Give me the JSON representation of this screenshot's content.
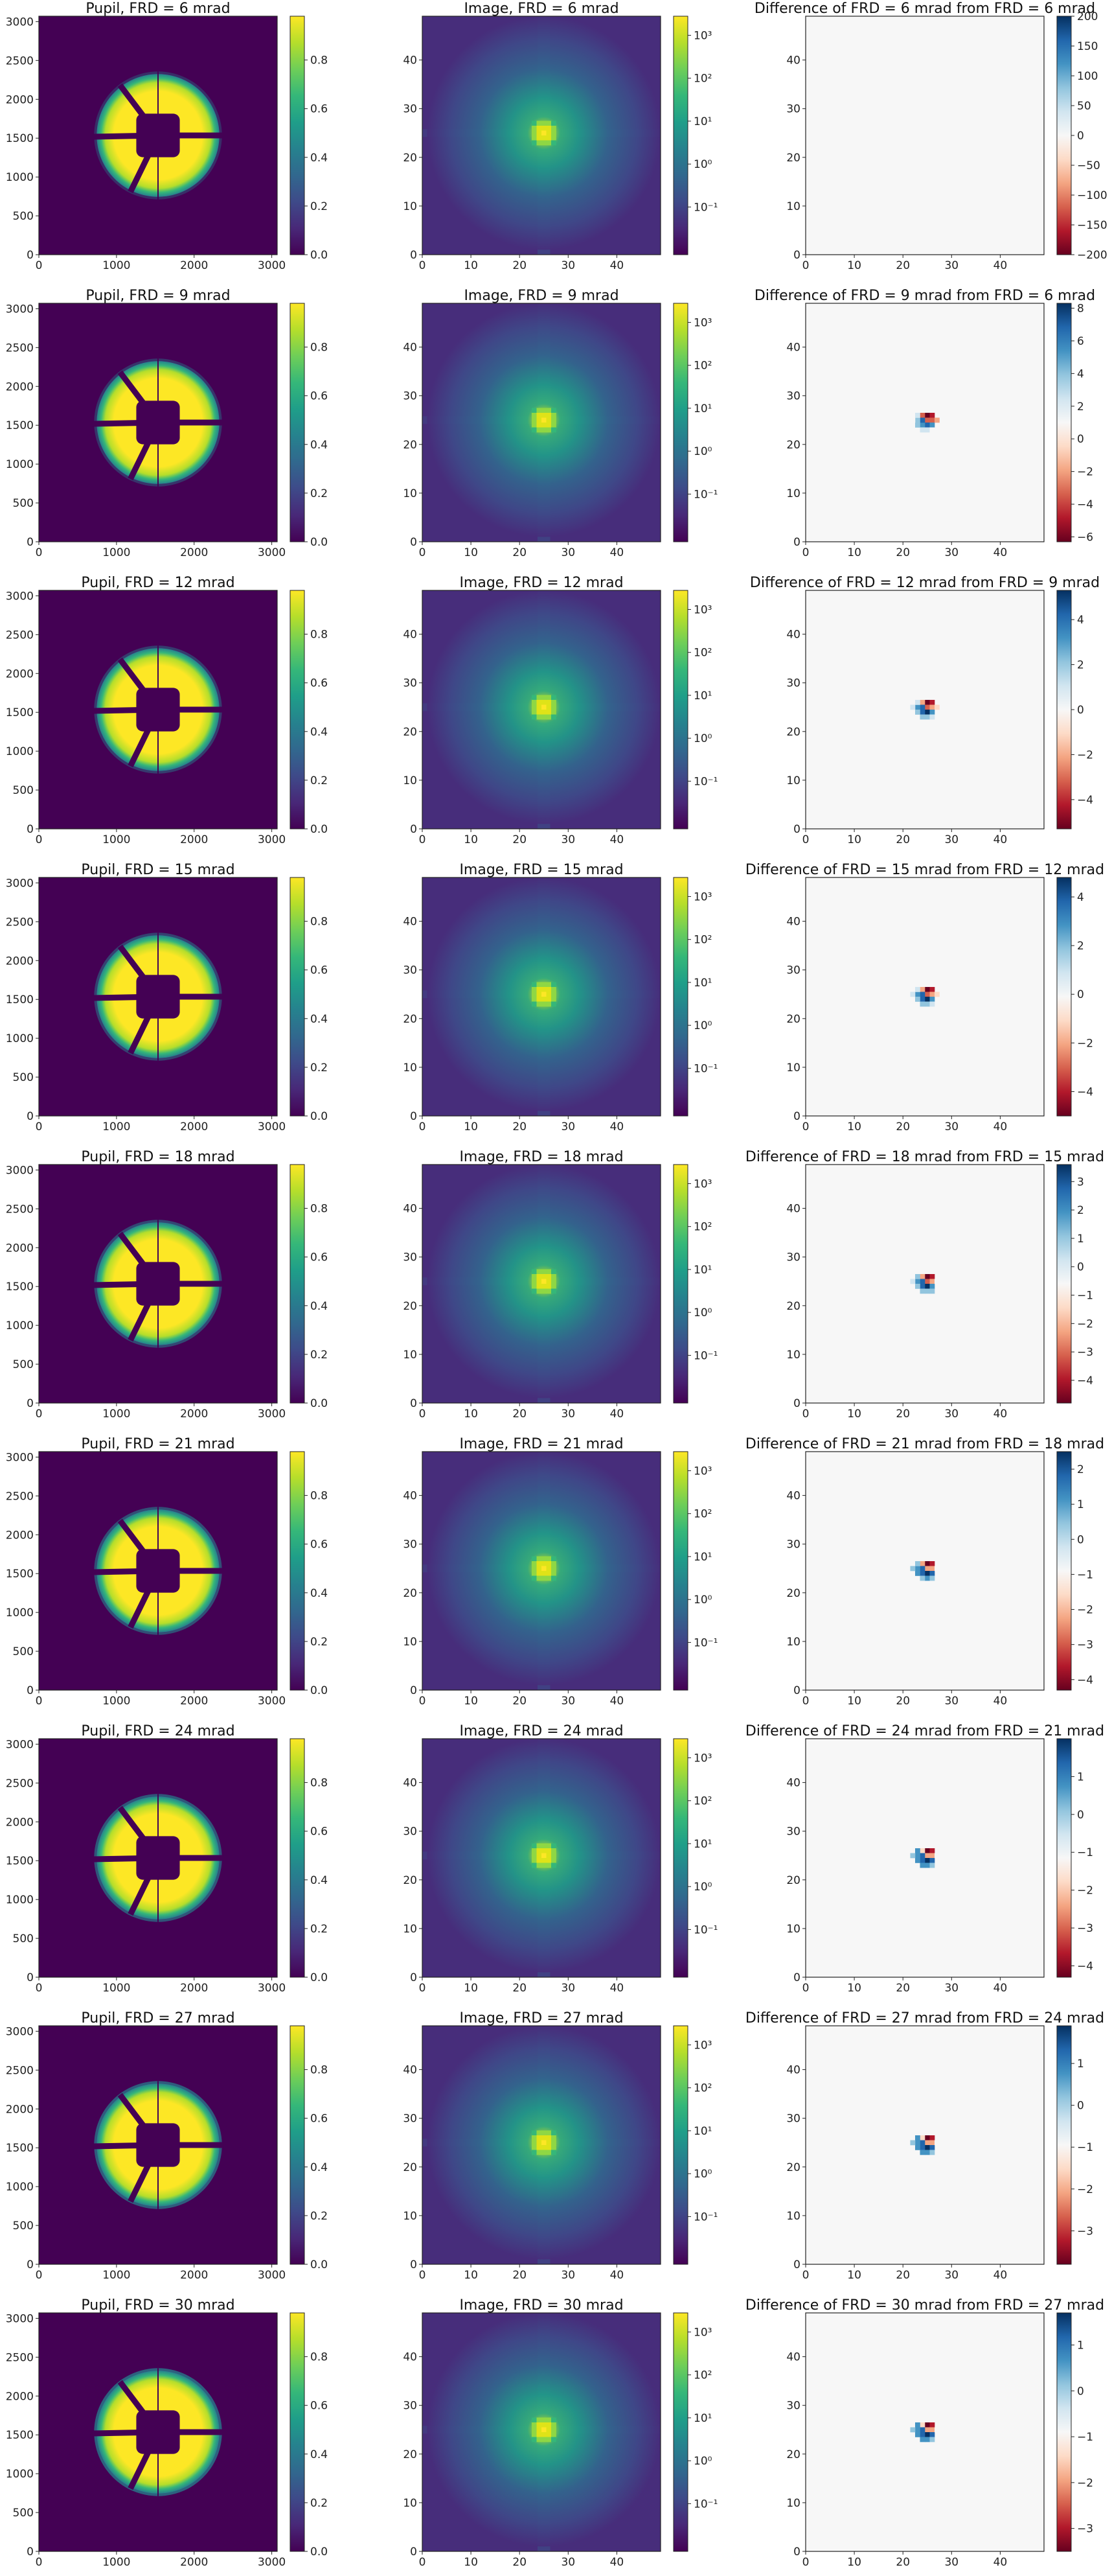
{
  "colors": {
    "background": "#ffffff",
    "axis": "#222222"
  },
  "colormaps": {
    "viridis": [
      "#440154",
      "#482878",
      "#3e4a89",
      "#31688e",
      "#26828e",
      "#1f9e89",
      "#35b779",
      "#6ece58",
      "#b5de2b",
      "#fde725"
    ],
    "rdbu": [
      "#67001f",
      "#b2182b",
      "#d6604d",
      "#f4a582",
      "#fddbc7",
      "#f7f7f7",
      "#d1e5f0",
      "#92c5de",
      "#4393c3",
      "#2166ac",
      "#053061"
    ]
  },
  "chart_data": [
    {
      "type": "heatmap",
      "row": 0,
      "pupil": {
        "title": "Pupil, FRD = 6 mrad",
        "x_ticks": [
          "0",
          "1000",
          "2000",
          "3000"
        ],
        "y_ticks": [
          "0",
          "500",
          "1000",
          "1500",
          "2000",
          "2500",
          "3000"
        ],
        "colorbar_ticks": [
          "0.0",
          "0.2",
          "0.4",
          "0.6",
          "0.8"
        ],
        "xlim": [
          0,
          3070
        ],
        "ylim": [
          0,
          3070
        ],
        "frd_mrad": 6
      },
      "image": {
        "title": "Image, FRD = 6 mrad",
        "x_ticks": [
          "0",
          "10",
          "20",
          "30",
          "40"
        ],
        "y_ticks": [
          "0",
          "10",
          "20",
          "30",
          "40"
        ],
        "colorbar_ticks": [
          "10³",
          "10²",
          "10¹",
          "10⁰",
          "10⁻¹"
        ],
        "colorbar_scale": "log",
        "xlim": [
          0,
          49
        ],
        "ylim": [
          0,
          49
        ]
      },
      "difference": {
        "title": "Difference of FRD = 6 mrad from FRD = 6 mrad",
        "x_ticks": [
          "0",
          "10",
          "20",
          "30",
          "40"
        ],
        "y_ticks": [
          "0",
          "10",
          "20",
          "30",
          "40"
        ],
        "colorbar_ticks": [
          "200",
          "150",
          "100",
          "50",
          "0",
          "−50",
          "−100",
          "−150",
          "−200"
        ],
        "clim": [
          -200,
          200
        ],
        "xlim": [
          0,
          49
        ],
        "ylim": [
          0,
          49
        ],
        "show_blob": false
      }
    },
    {
      "type": "heatmap",
      "row": 1,
      "pupil": {
        "title": "Pupil, FRD = 9 mrad",
        "x_ticks": [
          "0",
          "1000",
          "2000",
          "3000"
        ],
        "y_ticks": [
          "0",
          "500",
          "1000",
          "1500",
          "2000",
          "2500",
          "3000"
        ],
        "colorbar_ticks": [
          "0.0",
          "0.2",
          "0.4",
          "0.6",
          "0.8"
        ],
        "xlim": [
          0,
          3070
        ],
        "ylim": [
          0,
          3070
        ],
        "frd_mrad": 9
      },
      "image": {
        "title": "Image, FRD = 9 mrad",
        "x_ticks": [
          "0",
          "10",
          "20",
          "30",
          "40"
        ],
        "y_ticks": [
          "0",
          "10",
          "20",
          "30",
          "40"
        ],
        "colorbar_ticks": [
          "10³",
          "10²",
          "10¹",
          "10⁰",
          "10⁻¹"
        ],
        "colorbar_scale": "log",
        "xlim": [
          0,
          49
        ],
        "ylim": [
          0,
          49
        ]
      },
      "difference": {
        "title": "Difference of FRD = 9 mrad from FRD = 6 mrad",
        "x_ticks": [
          "0",
          "10",
          "20",
          "30",
          "40"
        ],
        "y_ticks": [
          "0",
          "10",
          "20",
          "30",
          "40"
        ],
        "colorbar_ticks": [
          "8",
          "6",
          "4",
          "2",
          "0",
          "−2",
          "−4",
          "−6"
        ],
        "clim": [
          -6.3,
          8.3
        ],
        "xlim": [
          0,
          49
        ],
        "ylim": [
          0,
          49
        ],
        "show_blob": true
      }
    },
    {
      "type": "heatmap",
      "row": 2,
      "pupil": {
        "title": "Pupil, FRD = 12 mrad",
        "x_ticks": [
          "0",
          "1000",
          "2000",
          "3000"
        ],
        "y_ticks": [
          "0",
          "500",
          "1000",
          "1500",
          "2000",
          "2500",
          "3000"
        ],
        "colorbar_ticks": [
          "0.0",
          "0.2",
          "0.4",
          "0.6",
          "0.8"
        ],
        "xlim": [
          0,
          3070
        ],
        "ylim": [
          0,
          3070
        ],
        "frd_mrad": 12
      },
      "image": {
        "title": "Image, FRD = 12 mrad",
        "x_ticks": [
          "0",
          "10",
          "20",
          "30",
          "40"
        ],
        "y_ticks": [
          "0",
          "10",
          "20",
          "30",
          "40"
        ],
        "colorbar_ticks": [
          "10³",
          "10²",
          "10¹",
          "10⁰",
          "10⁻¹"
        ],
        "colorbar_scale": "log",
        "xlim": [
          0,
          49
        ],
        "ylim": [
          0,
          49
        ]
      },
      "difference": {
        "title": "Difference of FRD = 12 mrad from FRD = 9 mrad",
        "x_ticks": [
          "0",
          "10",
          "20",
          "30",
          "40"
        ],
        "y_ticks": [
          "0",
          "10",
          "20",
          "30",
          "40"
        ],
        "colorbar_ticks": [
          "4",
          "2",
          "0",
          "−2",
          "−4"
        ],
        "clim": [
          -5.3,
          5.3
        ],
        "xlim": [
          0,
          49
        ],
        "ylim": [
          0,
          49
        ],
        "show_blob": true
      }
    },
    {
      "type": "heatmap",
      "row": 3,
      "pupil": {
        "title": "Pupil, FRD = 15 mrad",
        "x_ticks": [
          "0",
          "1000",
          "2000",
          "3000"
        ],
        "y_ticks": [
          "0",
          "500",
          "1000",
          "1500",
          "2000",
          "2500",
          "3000"
        ],
        "colorbar_ticks": [
          "0.0",
          "0.2",
          "0.4",
          "0.6",
          "0.8"
        ],
        "xlim": [
          0,
          3070
        ],
        "ylim": [
          0,
          3070
        ],
        "frd_mrad": 15
      },
      "image": {
        "title": "Image, FRD = 15 mrad",
        "x_ticks": [
          "0",
          "10",
          "20",
          "30",
          "40"
        ],
        "y_ticks": [
          "0",
          "10",
          "20",
          "30",
          "40"
        ],
        "colorbar_ticks": [
          "10³",
          "10²",
          "10¹",
          "10⁰",
          "10⁻¹"
        ],
        "colorbar_scale": "log",
        "xlim": [
          0,
          49
        ],
        "ylim": [
          0,
          49
        ]
      },
      "difference": {
        "title": "Difference of FRD = 15 mrad from FRD = 12 mrad",
        "x_ticks": [
          "0",
          "10",
          "20",
          "30",
          "40"
        ],
        "y_ticks": [
          "0",
          "10",
          "20",
          "30",
          "40"
        ],
        "colorbar_ticks": [
          "4",
          "2",
          "0",
          "−2",
          "−4"
        ],
        "clim": [
          -5,
          4.8
        ],
        "xlim": [
          0,
          49
        ],
        "ylim": [
          0,
          49
        ],
        "show_blob": true
      }
    },
    {
      "type": "heatmap",
      "row": 4,
      "pupil": {
        "title": "Pupil, FRD = 18 mrad",
        "x_ticks": [
          "0",
          "1000",
          "2000",
          "3000"
        ],
        "y_ticks": [
          "0",
          "500",
          "1000",
          "1500",
          "2000",
          "2500",
          "3000"
        ],
        "colorbar_ticks": [
          "0.0",
          "0.2",
          "0.4",
          "0.6",
          "0.8"
        ],
        "xlim": [
          0,
          3070
        ],
        "ylim": [
          0,
          3070
        ],
        "frd_mrad": 18
      },
      "image": {
        "title": "Image, FRD = 18 mrad",
        "x_ticks": [
          "0",
          "10",
          "20",
          "30",
          "40"
        ],
        "y_ticks": [
          "0",
          "10",
          "20",
          "30",
          "40"
        ],
        "colorbar_ticks": [
          "10³",
          "10²",
          "10¹",
          "10⁰",
          "10⁻¹"
        ],
        "colorbar_scale": "log",
        "xlim": [
          0,
          49
        ],
        "ylim": [
          0,
          49
        ]
      },
      "difference": {
        "title": "Difference of FRD = 18 mrad from FRD = 15 mrad",
        "x_ticks": [
          "0",
          "10",
          "20",
          "30",
          "40"
        ],
        "y_ticks": [
          "0",
          "10",
          "20",
          "30",
          "40"
        ],
        "colorbar_ticks": [
          "3",
          "2",
          "1",
          "0",
          "−1",
          "−2",
          "−3",
          "−4"
        ],
        "clim": [
          -4.8,
          3.6
        ],
        "xlim": [
          0,
          49
        ],
        "ylim": [
          0,
          49
        ],
        "show_blob": true
      }
    },
    {
      "type": "heatmap",
      "row": 5,
      "pupil": {
        "title": "Pupil, FRD = 21 mrad",
        "x_ticks": [
          "0",
          "1000",
          "2000",
          "3000"
        ],
        "y_ticks": [
          "0",
          "500",
          "1000",
          "1500",
          "2000",
          "2500",
          "3000"
        ],
        "colorbar_ticks": [
          "0.0",
          "0.2",
          "0.4",
          "0.6",
          "0.8"
        ],
        "xlim": [
          0,
          3070
        ],
        "ylim": [
          0,
          3070
        ],
        "frd_mrad": 21
      },
      "image": {
        "title": "Image, FRD = 21 mrad",
        "x_ticks": [
          "0",
          "10",
          "20",
          "30",
          "40"
        ],
        "y_ticks": [
          "0",
          "10",
          "20",
          "30",
          "40"
        ],
        "colorbar_ticks": [
          "10³",
          "10²",
          "10¹",
          "10⁰",
          "10⁻¹"
        ],
        "colorbar_scale": "log",
        "xlim": [
          0,
          49
        ],
        "ylim": [
          0,
          49
        ]
      },
      "difference": {
        "title": "Difference of FRD = 21 mrad from FRD = 18 mrad",
        "x_ticks": [
          "0",
          "10",
          "20",
          "30",
          "40"
        ],
        "y_ticks": [
          "0",
          "10",
          "20",
          "30",
          "40"
        ],
        "colorbar_ticks": [
          "2",
          "1",
          "0",
          "−1",
          "−2",
          "−3",
          "−4"
        ],
        "clim": [
          -4.3,
          2.5
        ],
        "xlim": [
          0,
          49
        ],
        "ylim": [
          0,
          49
        ],
        "show_blob": true
      }
    },
    {
      "type": "heatmap",
      "row": 6,
      "pupil": {
        "title": "Pupil, FRD = 24 mrad",
        "x_ticks": [
          "0",
          "1000",
          "2000",
          "3000"
        ],
        "y_ticks": [
          "0",
          "500",
          "1000",
          "1500",
          "2000",
          "2500",
          "3000"
        ],
        "colorbar_ticks": [
          "0.0",
          "0.2",
          "0.4",
          "0.6",
          "0.8"
        ],
        "xlim": [
          0,
          3070
        ],
        "ylim": [
          0,
          3070
        ],
        "frd_mrad": 24
      },
      "image": {
        "title": "Image, FRD = 24 mrad",
        "x_ticks": [
          "0",
          "10",
          "20",
          "30",
          "40"
        ],
        "y_ticks": [
          "0",
          "10",
          "20",
          "30",
          "40"
        ],
        "colorbar_ticks": [
          "10³",
          "10²",
          "10¹",
          "10⁰",
          "10⁻¹"
        ],
        "colorbar_scale": "log",
        "xlim": [
          0,
          49
        ],
        "ylim": [
          0,
          49
        ]
      },
      "difference": {
        "title": "Difference of FRD = 24 mrad from FRD = 21 mrad",
        "x_ticks": [
          "0",
          "10",
          "20",
          "30",
          "40"
        ],
        "y_ticks": [
          "0",
          "10",
          "20",
          "30",
          "40"
        ],
        "colorbar_ticks": [
          "1",
          "0",
          "−1",
          "−2",
          "−3",
          "−4"
        ],
        "clim": [
          -4.3,
          2
        ],
        "xlim": [
          0,
          49
        ],
        "ylim": [
          0,
          49
        ],
        "show_blob": true
      }
    },
    {
      "type": "heatmap",
      "row": 7,
      "pupil": {
        "title": "Pupil, FRD = 27 mrad",
        "x_ticks": [
          "0",
          "1000",
          "2000",
          "3000"
        ],
        "y_ticks": [
          "0",
          "500",
          "1000",
          "1500",
          "2000",
          "2500",
          "3000"
        ],
        "colorbar_ticks": [
          "0.0",
          "0.2",
          "0.4",
          "0.6",
          "0.8"
        ],
        "xlim": [
          0,
          3070
        ],
        "ylim": [
          0,
          3070
        ],
        "frd_mrad": 27
      },
      "image": {
        "title": "Image, FRD = 27 mrad",
        "x_ticks": [
          "0",
          "10",
          "20",
          "30",
          "40"
        ],
        "y_ticks": [
          "0",
          "10",
          "20",
          "30",
          "40"
        ],
        "colorbar_ticks": [
          "10³",
          "10²",
          "10¹",
          "10⁰",
          "10⁻¹"
        ],
        "colorbar_scale": "log",
        "xlim": [
          0,
          49
        ],
        "ylim": [
          0,
          49
        ]
      },
      "difference": {
        "title": "Difference of FRD = 27 mrad from FRD = 24 mrad",
        "x_ticks": [
          "0",
          "10",
          "20",
          "30",
          "40"
        ],
        "y_ticks": [
          "0",
          "10",
          "20",
          "30",
          "40"
        ],
        "colorbar_ticks": [
          "1",
          "0",
          "−1",
          "−2",
          "−3"
        ],
        "clim": [
          -3.8,
          1.9
        ],
        "xlim": [
          0,
          49
        ],
        "ylim": [
          0,
          49
        ],
        "show_blob": true
      }
    },
    {
      "type": "heatmap",
      "row": 8,
      "pupil": {
        "title": "Pupil, FRD = 30 mrad",
        "x_ticks": [
          "0",
          "1000",
          "2000",
          "3000"
        ],
        "y_ticks": [
          "0",
          "500",
          "1000",
          "1500",
          "2000",
          "2500",
          "3000"
        ],
        "colorbar_ticks": [
          "0.0",
          "0.2",
          "0.4",
          "0.6",
          "0.8"
        ],
        "xlim": [
          0,
          3070
        ],
        "ylim": [
          0,
          3070
        ],
        "frd_mrad": 30
      },
      "image": {
        "title": "Image, FRD = 30 mrad",
        "x_ticks": [
          "0",
          "10",
          "20",
          "30",
          "40"
        ],
        "y_ticks": [
          "0",
          "10",
          "20",
          "30",
          "40"
        ],
        "colorbar_ticks": [
          "10³",
          "10²",
          "10¹",
          "10⁰",
          "10⁻¹"
        ],
        "colorbar_scale": "log",
        "xlim": [
          0,
          49
        ],
        "ylim": [
          0,
          49
        ]
      },
      "difference": {
        "title": "Difference of FRD = 30 mrad from FRD = 27 mrad",
        "x_ticks": [
          "0",
          "10",
          "20",
          "30",
          "40"
        ],
        "y_ticks": [
          "0",
          "10",
          "20",
          "30",
          "40"
        ],
        "colorbar_ticks": [
          "1",
          "0",
          "−1",
          "−2",
          "−3"
        ],
        "clim": [
          -3.5,
          1.7
        ],
        "xlim": [
          0,
          49
        ],
        "ylim": [
          0,
          49
        ],
        "show_blob": true
      }
    }
  ]
}
